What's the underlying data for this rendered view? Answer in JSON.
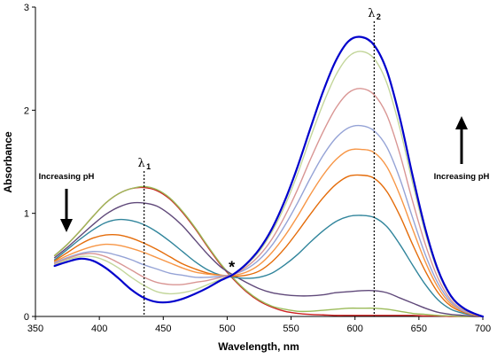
{
  "chart_data": {
    "type": "line",
    "title": "",
    "xlabel": "Wavelength, nm",
    "ylabel": "Absorbance",
    "xlim": [
      350,
      700
    ],
    "ylim": [
      0,
      3
    ],
    "xticks": [
      350,
      400,
      450,
      500,
      550,
      600,
      650,
      700
    ],
    "yticks": [
      0,
      1,
      2,
      3
    ],
    "grid": false,
    "x": [
      365,
      375,
      385,
      395,
      405,
      415,
      425,
      435,
      445,
      455,
      465,
      475,
      485,
      495,
      505,
      515,
      525,
      535,
      545,
      555,
      565,
      575,
      585,
      595,
      605,
      615,
      625,
      635,
      645,
      655,
      665,
      675,
      685,
      695,
      700
    ],
    "series": [
      {
        "color": "#cc2020",
        "values": [
          0.59,
          0.7,
          0.83,
          0.97,
          1.1,
          1.19,
          1.24,
          1.25,
          1.22,
          1.14,
          1.01,
          0.85,
          0.67,
          0.5,
          0.36,
          0.24,
          0.15,
          0.09,
          0.05,
          0.03,
          0.02,
          0.015,
          0.01,
          0.01,
          0.01,
          0.01,
          0.01,
          0.01,
          0.01,
          0.005,
          0.005,
          0.0,
          0.0,
          0.0,
          0.0
        ]
      },
      {
        "color": "#9bbb59",
        "values": [
          0.59,
          0.7,
          0.83,
          0.97,
          1.1,
          1.19,
          1.24,
          1.26,
          1.23,
          1.15,
          1.02,
          0.86,
          0.68,
          0.51,
          0.37,
          0.25,
          0.16,
          0.1,
          0.07,
          0.05,
          0.05,
          0.06,
          0.07,
          0.08,
          0.08,
          0.08,
          0.07,
          0.05,
          0.03,
          0.02,
          0.01,
          0.005,
          0.0,
          0.0,
          0.0
        ]
      },
      {
        "color": "#60497a",
        "values": [
          0.57,
          0.67,
          0.78,
          0.89,
          0.99,
          1.06,
          1.1,
          1.1,
          1.07,
          0.99,
          0.88,
          0.74,
          0.6,
          0.48,
          0.4,
          0.33,
          0.27,
          0.23,
          0.21,
          0.2,
          0.2,
          0.21,
          0.23,
          0.24,
          0.25,
          0.25,
          0.23,
          0.18,
          0.13,
          0.08,
          0.04,
          0.02,
          0.01,
          0.0,
          0.0
        ]
      },
      {
        "color": "#31859c",
        "values": [
          0.55,
          0.65,
          0.75,
          0.84,
          0.91,
          0.94,
          0.93,
          0.89,
          0.82,
          0.73,
          0.63,
          0.53,
          0.45,
          0.4,
          0.38,
          0.37,
          0.38,
          0.42,
          0.5,
          0.6,
          0.72,
          0.83,
          0.92,
          0.97,
          0.98,
          0.96,
          0.87,
          0.7,
          0.5,
          0.31,
          0.16,
          0.07,
          0.03,
          0.01,
          0.0
        ]
      },
      {
        "color": "#e46c0a",
        "values": [
          0.54,
          0.62,
          0.7,
          0.76,
          0.79,
          0.79,
          0.76,
          0.71,
          0.65,
          0.58,
          0.51,
          0.46,
          0.42,
          0.4,
          0.39,
          0.4,
          0.44,
          0.53,
          0.66,
          0.82,
          0.99,
          1.15,
          1.28,
          1.36,
          1.37,
          1.34,
          1.21,
          0.98,
          0.7,
          0.44,
          0.23,
          0.1,
          0.04,
          0.01,
          0.0
        ]
      },
      {
        "color": "#f79646",
        "values": [
          0.53,
          0.59,
          0.64,
          0.68,
          0.7,
          0.69,
          0.66,
          0.62,
          0.57,
          0.52,
          0.47,
          0.43,
          0.41,
          0.4,
          0.4,
          0.43,
          0.5,
          0.62,
          0.78,
          0.97,
          1.18,
          1.37,
          1.52,
          1.61,
          1.62,
          1.59,
          1.45,
          1.18,
          0.85,
          0.53,
          0.28,
          0.12,
          0.05,
          0.01,
          0.0
        ]
      },
      {
        "color": "#95a3d6",
        "values": [
          0.52,
          0.57,
          0.61,
          0.63,
          0.62,
          0.59,
          0.55,
          0.5,
          0.46,
          0.42,
          0.4,
          0.38,
          0.38,
          0.39,
          0.41,
          0.46,
          0.55,
          0.69,
          0.88,
          1.1,
          1.34,
          1.56,
          1.73,
          1.83,
          1.85,
          1.8,
          1.64,
          1.34,
          0.96,
          0.6,
          0.32,
          0.14,
          0.05,
          0.02,
          0.0
        ]
      },
      {
        "color": "#d99694",
        "values": [
          0.51,
          0.56,
          0.6,
          0.61,
          0.58,
          0.52,
          0.45,
          0.38,
          0.33,
          0.31,
          0.31,
          0.33,
          0.35,
          0.38,
          0.41,
          0.48,
          0.59,
          0.75,
          0.97,
          1.23,
          1.52,
          1.79,
          2.02,
          2.17,
          2.21,
          2.15,
          1.95,
          1.58,
          1.12,
          0.7,
          0.37,
          0.16,
          0.06,
          0.02,
          0.0
        ]
      },
      {
        "color": "#c3d69b",
        "values": [
          0.5,
          0.55,
          0.58,
          0.58,
          0.54,
          0.47,
          0.38,
          0.3,
          0.24,
          0.22,
          0.23,
          0.26,
          0.31,
          0.36,
          0.41,
          0.5,
          0.63,
          0.82,
          1.07,
          1.38,
          1.73,
          2.06,
          2.34,
          2.52,
          2.57,
          2.5,
          2.26,
          1.83,
          1.3,
          0.81,
          0.43,
          0.19,
          0.07,
          0.02,
          0.0
        ]
      },
      {
        "color": "#0000cc",
        "values": [
          0.49,
          0.53,
          0.56,
          0.54,
          0.47,
          0.37,
          0.26,
          0.18,
          0.14,
          0.14,
          0.17,
          0.22,
          0.28,
          0.35,
          0.41,
          0.51,
          0.65,
          0.85,
          1.12,
          1.45,
          1.82,
          2.18,
          2.48,
          2.67,
          2.71,
          2.63,
          2.38,
          1.93,
          1.37,
          0.85,
          0.45,
          0.2,
          0.08,
          0.02,
          0.0
        ]
      }
    ],
    "reference_lines": [
      {
        "x": 435,
        "label_main": "λ",
        "label_sub": "1"
      },
      {
        "x": 615,
        "label_main": "λ",
        "label_sub": "2"
      }
    ],
    "isosbestic": {
      "x": 505,
      "y": 0.41,
      "label": "*"
    },
    "annotations": [
      {
        "text": "Increasing pH",
        "arrow": "down",
        "side": "left"
      },
      {
        "text": "Increasing pH",
        "arrow": "up",
        "side": "right"
      }
    ]
  }
}
